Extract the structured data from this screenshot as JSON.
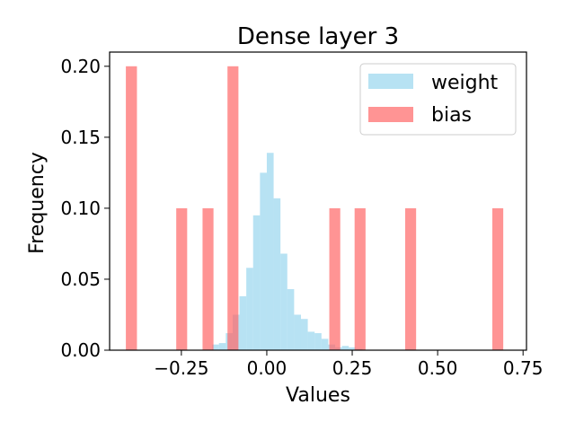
{
  "chart_data": {
    "type": "bar",
    "title": "Dense layer 3",
    "xlabel": "Values",
    "ylabel": "Frequency",
    "xlim": [
      -0.46,
      0.76
    ],
    "ylim": [
      0.0,
      0.21
    ],
    "xticks": [
      {
        "value": -0.25,
        "label": "−0.25"
      },
      {
        "value": 0.0,
        "label": "0.00"
      },
      {
        "value": 0.25,
        "label": "0.25"
      },
      {
        "value": 0.5,
        "label": "0.50"
      },
      {
        "value": 0.75,
        "label": "0.75"
      }
    ],
    "yticks": [
      {
        "value": 0.0,
        "label": "0.00"
      },
      {
        "value": 0.05,
        "label": "0.05"
      },
      {
        "value": 0.1,
        "label": "0.10"
      },
      {
        "value": 0.15,
        "label": "0.15"
      },
      {
        "value": 0.2,
        "label": "0.20"
      }
    ],
    "grid": false,
    "legend": {
      "position": "top-right"
    },
    "series": [
      {
        "name": "weight",
        "color": "#87ceeb",
        "opacity": 0.6,
        "bins": [
          {
            "x0": -0.16,
            "x1": -0.14,
            "y": 0.004
          },
          {
            "x0": -0.14,
            "x1": -0.12,
            "y": 0.005
          },
          {
            "x0": -0.12,
            "x1": -0.1,
            "y": 0.012
          },
          {
            "x0": -0.1,
            "x1": -0.08,
            "y": 0.025
          },
          {
            "x0": -0.08,
            "x1": -0.06,
            "y": 0.038
          },
          {
            "x0": -0.06,
            "x1": -0.04,
            "y": 0.058
          },
          {
            "x0": -0.04,
            "x1": -0.02,
            "y": 0.095
          },
          {
            "x0": -0.02,
            "x1": 0.0,
            "y": 0.125
          },
          {
            "x0": 0.0,
            "x1": 0.02,
            "y": 0.139
          },
          {
            "x0": 0.02,
            "x1": 0.04,
            "y": 0.107
          },
          {
            "x0": 0.04,
            "x1": 0.06,
            "y": 0.068
          },
          {
            "x0": 0.06,
            "x1": 0.08,
            "y": 0.043
          },
          {
            "x0": 0.08,
            "x1": 0.1,
            "y": 0.025
          },
          {
            "x0": 0.1,
            "x1": 0.12,
            "y": 0.022
          },
          {
            "x0": 0.12,
            "x1": 0.14,
            "y": 0.013
          },
          {
            "x0": 0.14,
            "x1": 0.16,
            "y": 0.012
          },
          {
            "x0": 0.16,
            "x1": 0.18,
            "y": 0.008
          },
          {
            "x0": 0.18,
            "x1": 0.2,
            "y": 0.004
          },
          {
            "x0": 0.2,
            "x1": 0.22,
            "y": 0.002
          },
          {
            "x0": 0.22,
            "x1": 0.24,
            "y": 0.003
          },
          {
            "x0": 0.24,
            "x1": 0.26,
            "y": 0.002
          },
          {
            "x0": 0.26,
            "x1": 0.28,
            "y": 0.001
          }
        ]
      },
      {
        "name": "bias",
        "color": "#ff6666",
        "opacity": 0.7,
        "bins": [
          {
            "x0": -0.4125,
            "x1": -0.38,
            "y": 0.2
          },
          {
            "x0": -0.265,
            "x1": -0.233,
            "y": 0.1
          },
          {
            "x0": -0.188,
            "x1": -0.156,
            "y": 0.1
          },
          {
            "x0": -0.115,
            "x1": -0.083,
            "y": 0.2
          },
          {
            "x0": 0.183,
            "x1": 0.215,
            "y": 0.1
          },
          {
            "x0": 0.257,
            "x1": 0.289,
            "y": 0.1
          },
          {
            "x0": 0.405,
            "x1": 0.437,
            "y": 0.1
          },
          {
            "x0": 0.66,
            "x1": 0.692,
            "y": 0.1
          }
        ]
      }
    ]
  }
}
